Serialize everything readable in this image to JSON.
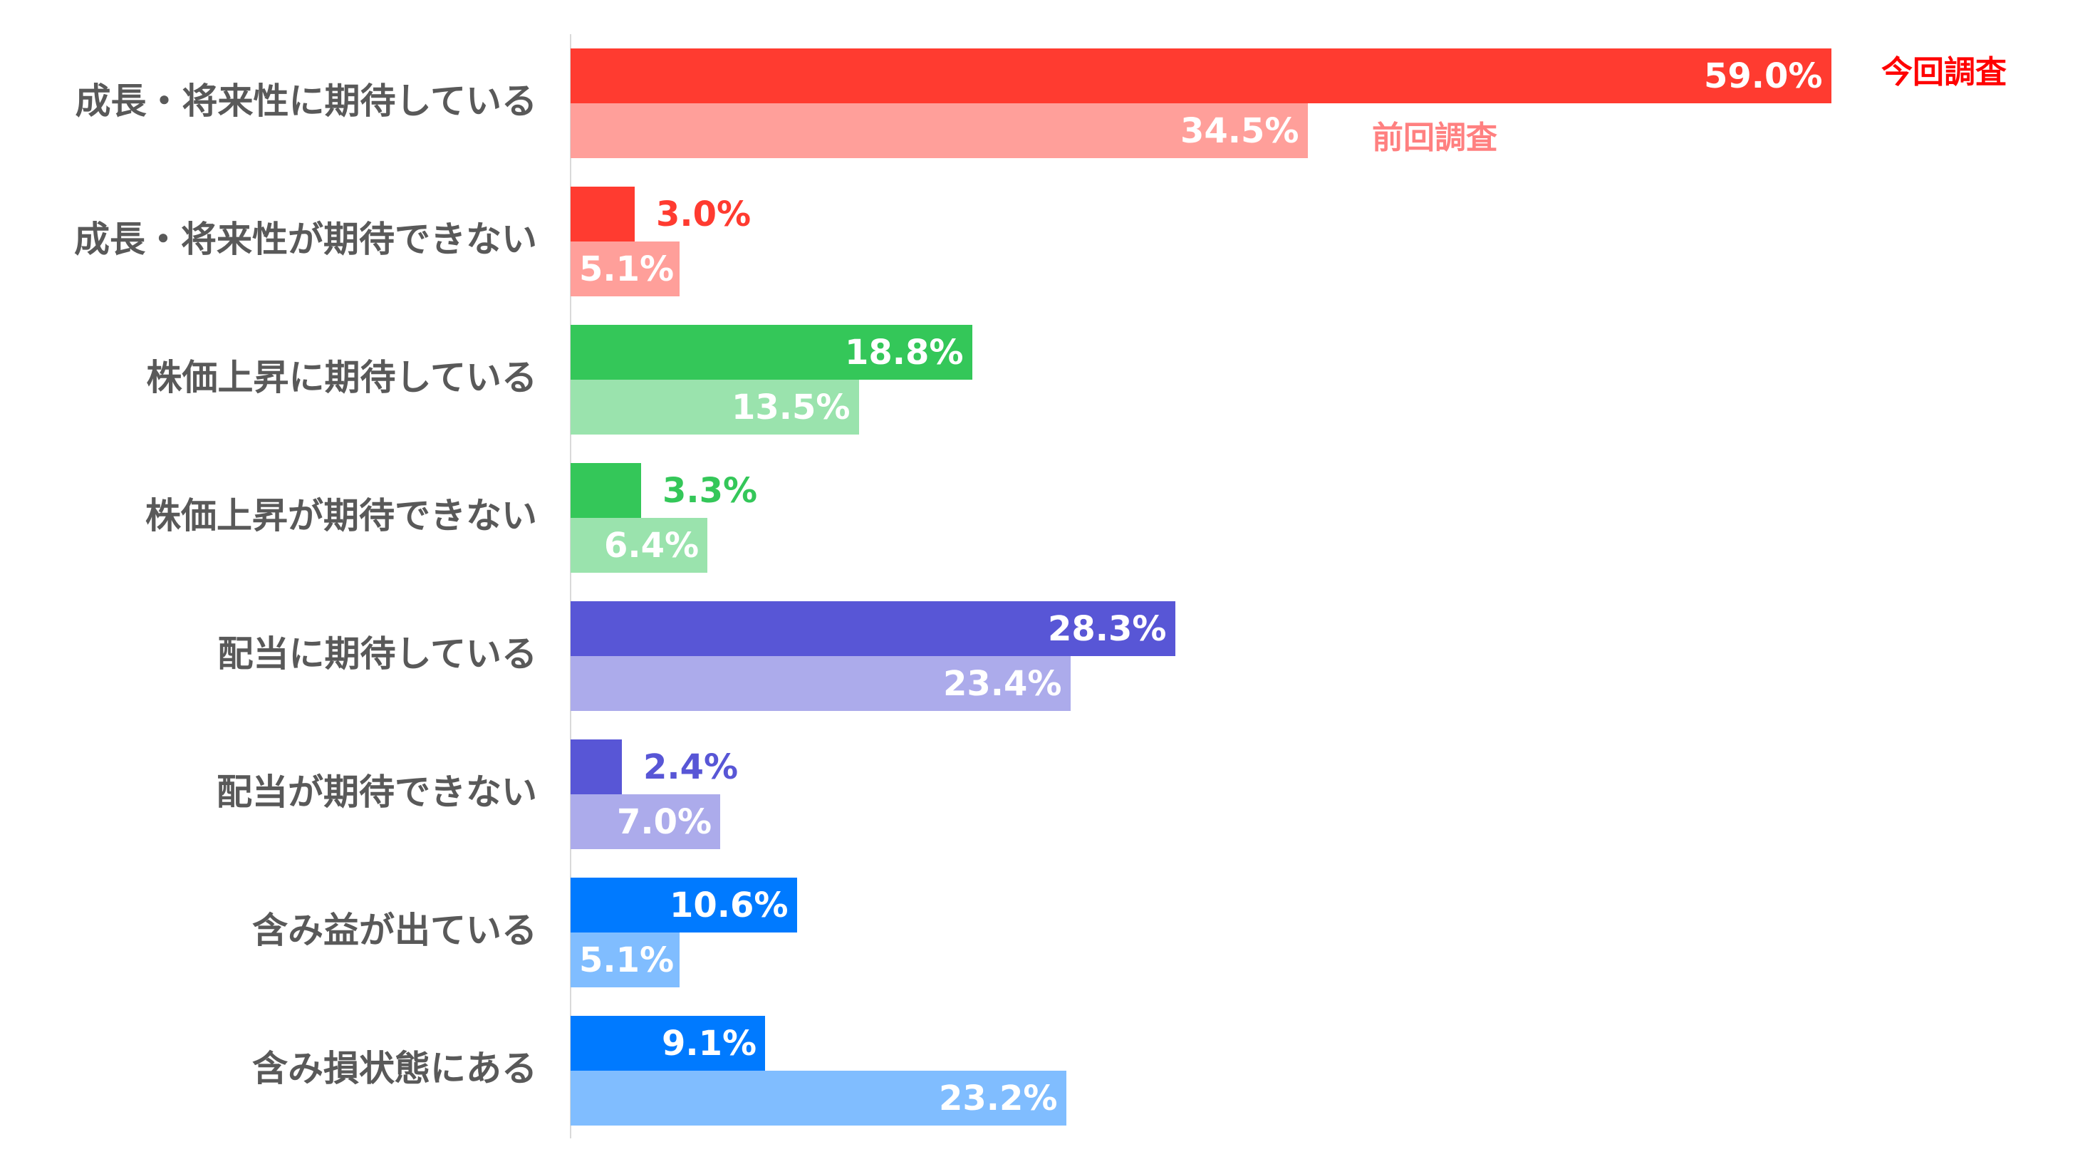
{
  "chart_data": {
    "type": "bar",
    "orientation": "horizontal",
    "title": "",
    "xlabel": "",
    "ylabel": "",
    "xlim": [
      0,
      60
    ],
    "grid": false,
    "unit": "%",
    "categories": [
      "成長・将来性に期待している",
      "成長・将来性が期待できない",
      "株価上昇に期待している",
      "株価上昇が期待できない",
      "配当に期待している",
      "配当が期待できない",
      "含み益が出ている",
      "含み損状態にある"
    ],
    "series": [
      {
        "name": "今回調査",
        "values": [
          59.0,
          3.0,
          18.8,
          3.3,
          28.3,
          2.4,
          10.6,
          9.1
        ],
        "labels": [
          "59.0%",
          "3.0%",
          "18.8%",
          "3.3%",
          "28.3%",
          "2.4%",
          "10.6%",
          "9.1%"
        ]
      },
      {
        "name": "前回調査",
        "values": [
          34.5,
          5.1,
          13.5,
          6.4,
          23.4,
          7.0,
          5.1,
          23.2
        ],
        "labels": [
          "34.5%",
          "5.1%",
          "13.5%",
          "6.4%",
          "23.4%",
          "7.0%",
          "5.1%",
          "23.2%"
        ]
      }
    ],
    "colors": {
      "current": [
        "#ff3b30",
        "#ff3b30",
        "#34c759",
        "#34c759",
        "#5856d6",
        "#5856d6",
        "#007aff",
        "#007aff"
      ],
      "previous": [
        "#ff9f9a",
        "#ff9f9a",
        "#9ae3ad",
        "#9ae3ad",
        "#acabeb",
        "#acabeb",
        "#80bdff",
        "#80bdff"
      ]
    },
    "legend": {
      "current_label": "今回調査",
      "previous_label": "前回調査",
      "current_color": "#ff0000",
      "previous_color": "#ff8080"
    }
  }
}
